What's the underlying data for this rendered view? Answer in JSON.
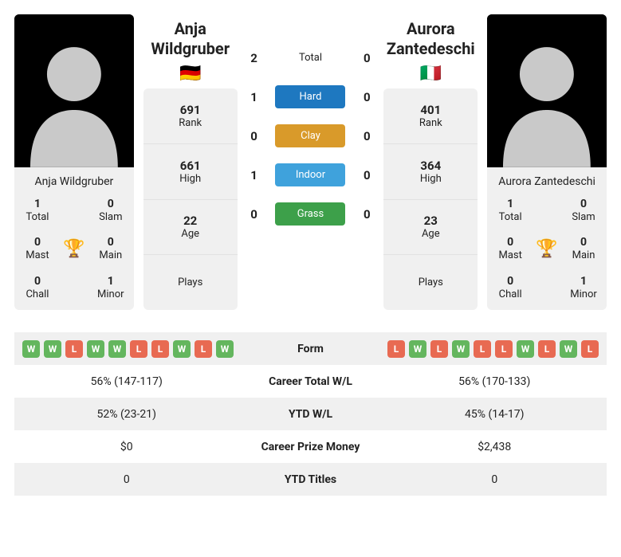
{
  "colors": {
    "win": "#64b65e",
    "loss": "#e86a52",
    "hard": "#1e78c0",
    "clay": "#d99a2a",
    "indoor": "#3fa2dc",
    "grass": "#3da04a",
    "trophy": "#3a7cc8"
  },
  "labels": {
    "total": "Total",
    "hard": "Hard",
    "clay": "Clay",
    "indoor": "Indoor",
    "grass": "Grass",
    "rank": "Rank",
    "high": "High",
    "age": "Age",
    "plays": "Plays",
    "form": "Form",
    "career_wl": "Career Total W/L",
    "ytd_wl": "YTD W/L",
    "prize": "Career Prize Money",
    "ytd_titles": "YTD Titles",
    "t_total": "Total",
    "t_slam": "Slam",
    "t_mast": "Mast",
    "t_main": "Main",
    "t_chall": "Chall",
    "t_minor": "Minor"
  },
  "p1": {
    "name": "Anja Wildgruber",
    "flag": "🇩🇪",
    "rank": "691",
    "high": "661",
    "age": "22",
    "plays": "",
    "titles": {
      "total": "1",
      "slam": "0",
      "mast": "0",
      "main": "0",
      "chall": "0",
      "minor": "1"
    },
    "form": [
      "W",
      "W",
      "L",
      "W",
      "W",
      "L",
      "L",
      "W",
      "L",
      "W"
    ],
    "career_wl": "56% (147-117)",
    "ytd_wl": "52% (23-21)",
    "prize": "$0",
    "ytd_titles": "0"
  },
  "p2": {
    "name": "Aurora Zantedeschi",
    "flag": "🇮🇹",
    "rank": "401",
    "high": "364",
    "age": "23",
    "plays": "",
    "titles": {
      "total": "1",
      "slam": "0",
      "mast": "0",
      "main": "0",
      "chall": "0",
      "minor": "1"
    },
    "form": [
      "L",
      "W",
      "L",
      "W",
      "L",
      "L",
      "W",
      "L",
      "W",
      "L"
    ],
    "career_wl": "56% (170-133)",
    "ytd_wl": "45% (14-17)",
    "prize": "$2,438",
    "ytd_titles": "0"
  },
  "h2h": {
    "total": {
      "p1": "2",
      "p2": "0"
    },
    "hard": {
      "p1": "1",
      "p2": "0"
    },
    "clay": {
      "p1": "0",
      "p2": "0"
    },
    "indoor": {
      "p1": "1",
      "p2": "0"
    },
    "grass": {
      "p1": "0",
      "p2": "0"
    }
  }
}
